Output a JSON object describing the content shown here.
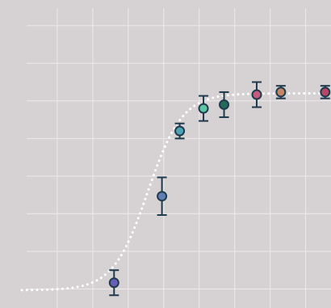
{
  "chart_data": {
    "type": "scatter",
    "title": "",
    "xlabel": "",
    "ylabel": "",
    "xlim": [
      0,
      8.6
    ],
    "ylim": [
      -0.05,
      1.12
    ],
    "x_grid": [
      1,
      2,
      3,
      4,
      5,
      6,
      7,
      8
    ],
    "y_grid": [
      0,
      0.15,
      0.3,
      0.45,
      0.6,
      0.75,
      0.9,
      1.05
    ],
    "grid": true,
    "legend": "none",
    "fit_curve": {
      "style": "dotted",
      "color": "#ffffff",
      "model": "logistic",
      "baseline": -0.005,
      "plateau": 0.78,
      "midpoint": 3.55,
      "steepness": 2.05
    },
    "points": [
      {
        "x": 2.6,
        "y": 0.025,
        "err": 0.05,
        "color": "#6a5fb8"
      },
      {
        "x": 3.95,
        "y": 0.37,
        "err": 0.075,
        "color": "#5e7eb4"
      },
      {
        "x": 4.45,
        "y": 0.63,
        "err": 0.03,
        "color": "#4ea4b4"
      },
      {
        "x": 5.12,
        "y": 0.72,
        "err": 0.05,
        "color": "#5cc7a5"
      },
      {
        "x": 5.7,
        "y": 0.735,
        "err": 0.05,
        "color": "#236a5a"
      },
      {
        "x": 6.62,
        "y": 0.775,
        "err": 0.05,
        "color": "#c65a7a"
      },
      {
        "x": 7.3,
        "y": 0.785,
        "err": 0.025,
        "color": "#c58766"
      },
      {
        "x": 8.55,
        "y": 0.785,
        "err": 0.025,
        "color": "#b84668"
      }
    ]
  }
}
